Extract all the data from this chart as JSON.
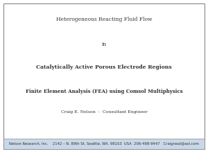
{
  "title_line1": "Heterogeneous Reacting Fluid Flow",
  "title_line2": "in",
  "title_line3": "Catalytically Active Porous Electrode Regions",
  "subtitle": "Finite Element Analysis (FEA) using Comsol Multiphysics",
  "author": "Craig E. Nelson  -  Consultant Engineer",
  "footer_text": "Nelson Research, Inc.    2142 – N. 89th St. Seattle, WA. 98103  USA  206-498-9447   Craigneal@aol.com",
  "bg_color": "#ffffff",
  "border_color": "#888888",
  "footer_bg": "#c8d8e8",
  "footer_text_color": "#333333",
  "main_text_color": "#333333",
  "title_fontsize": 5.5,
  "subtitle_fontsize": 5.0,
  "author_fontsize": 4.5,
  "footer_fontsize": 3.8
}
